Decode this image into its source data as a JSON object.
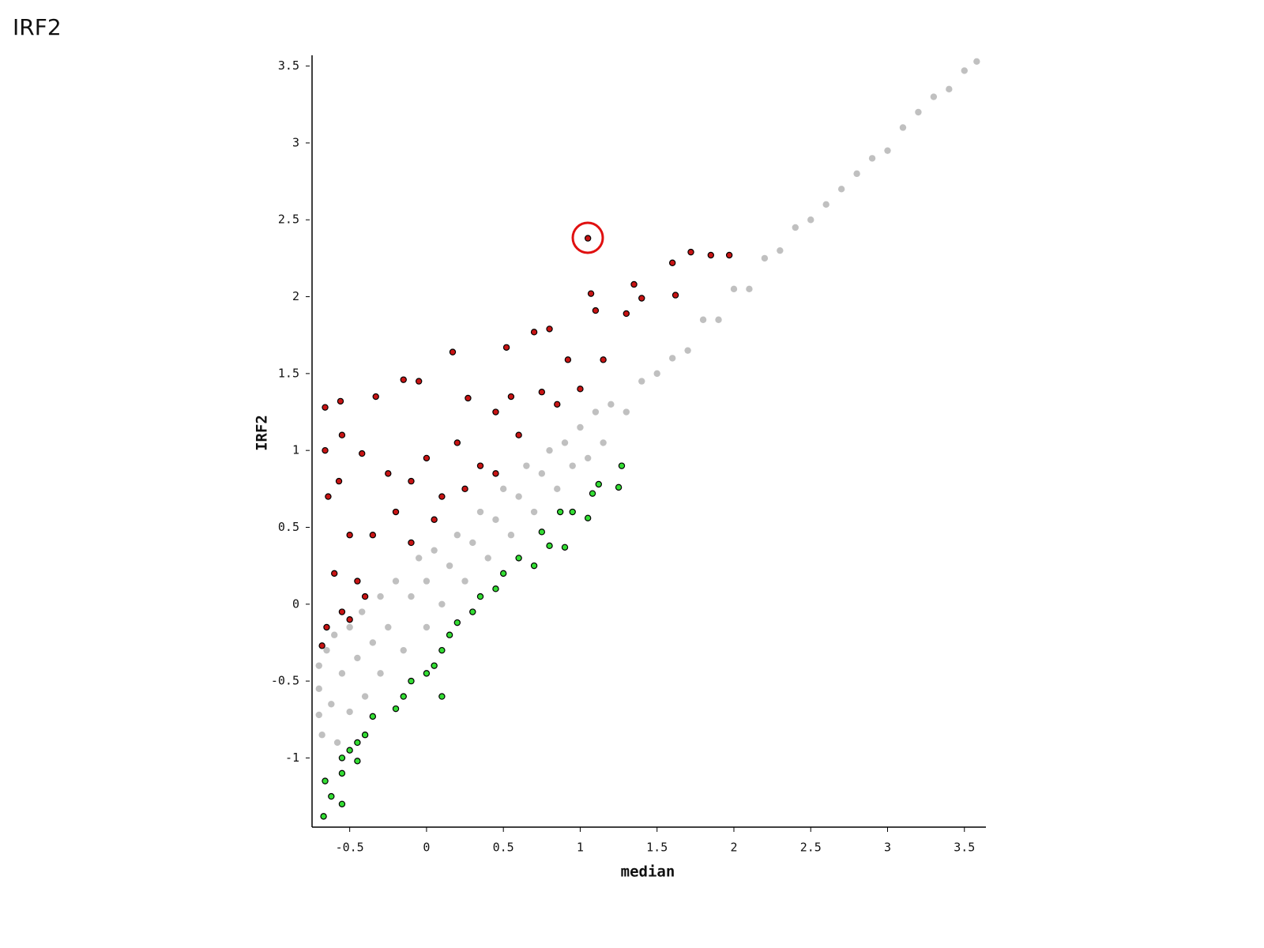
{
  "page_title": "IRF2",
  "chart_data": {
    "type": "scatter",
    "xlabel": "median",
    "ylabel": "IRF2",
    "xlim": [
      -0.745,
      3.64
    ],
    "ylim": [
      -1.45,
      3.57
    ],
    "xticks": [
      -0.5,
      0,
      0.5,
      1,
      1.5,
      2,
      2.5,
      3,
      3.5
    ],
    "yticks": [
      -1,
      -0.5,
      0,
      0.5,
      1,
      1.5,
      2,
      2.5,
      3,
      3.5
    ],
    "series": [
      {
        "color": "#c0c0c0",
        "x": [
          -0.7,
          -0.7,
          -0.7,
          -0.68,
          -0.65,
          -0.62,
          -0.6,
          -0.58,
          -0.55,
          -0.5,
          -0.5,
          -0.45,
          -0.42,
          -0.4,
          -0.35,
          -0.3,
          -0.3,
          -0.25,
          -0.2,
          -0.15,
          -0.1,
          -0.05,
          0,
          0,
          0.05,
          0.1,
          0.15,
          0.2,
          0.25,
          0.3,
          0.35,
          0.4,
          0.45,
          0.5,
          0.55,
          0.6,
          0.65,
          0.7,
          0.75,
          0.8,
          0.85,
          0.9,
          0.95,
          1.0,
          1.05,
          1.1,
          1.15,
          1.2,
          1.3,
          1.4,
          1.5,
          1.6,
          1.7,
          1.8,
          1.9,
          2.0,
          2.1,
          2.2,
          2.3,
          2.4,
          2.5,
          2.6,
          2.7,
          2.8,
          2.9,
          3.0,
          3.1,
          3.2,
          3.3,
          3.4,
          3.5,
          3.58
        ],
        "values": [
          -0.72,
          -0.55,
          -0.4,
          -0.85,
          -0.3,
          -0.65,
          -0.2,
          -0.9,
          -0.45,
          -0.15,
          -0.7,
          -0.35,
          -0.05,
          -0.6,
          -0.25,
          0.05,
          -0.45,
          -0.15,
          0.15,
          -0.3,
          0.05,
          0.3,
          -0.15,
          0.15,
          0.35,
          0.0,
          0.25,
          0.45,
          0.15,
          0.4,
          0.6,
          0.3,
          0.55,
          0.75,
          0.45,
          0.7,
          0.9,
          0.6,
          0.85,
          1.0,
          0.75,
          1.05,
          0.9,
          1.15,
          0.95,
          1.25,
          1.05,
          1.3,
          1.25,
          1.45,
          1.5,
          1.6,
          1.65,
          1.85,
          1.85,
          2.05,
          2.05,
          2.25,
          2.3,
          2.45,
          2.5,
          2.6,
          2.7,
          2.8,
          2.9,
          2.95,
          3.1,
          3.2,
          3.3,
          3.35,
          3.47,
          3.53
        ]
      },
      {
        "color": "#c81414",
        "edgecolor": "#000000",
        "x": [
          1.05,
          1.72,
          1.85,
          1.97,
          1.6,
          1.35,
          1.07,
          1.4,
          1.62,
          1.1,
          1.3,
          0.8,
          0.7,
          0.52,
          0.17,
          -0.15,
          -0.05,
          -0.33,
          -0.56,
          -0.66,
          0.27,
          0.92,
          1.15,
          0.55,
          0.75,
          0.45,
          0.2,
          0.0,
          -0.1,
          -0.25,
          -0.55,
          -0.42,
          -0.66,
          0.35,
          0.1,
          -0.2,
          -0.35,
          -0.5,
          -0.64,
          -0.57,
          0.05,
          -0.1,
          -0.45,
          -0.6,
          -0.55,
          -0.65,
          -0.68,
          -0.5,
          -0.4,
          0.25,
          0.45,
          0.6,
          0.85,
          1.0
        ],
        "values": [
          2.38,
          2.29,
          2.27,
          2.27,
          2.22,
          2.08,
          2.02,
          1.99,
          2.01,
          1.91,
          1.89,
          1.79,
          1.77,
          1.67,
          1.64,
          1.46,
          1.45,
          1.35,
          1.32,
          1.28,
          1.34,
          1.59,
          1.59,
          1.35,
          1.38,
          1.25,
          1.05,
          0.95,
          0.8,
          0.85,
          1.1,
          0.98,
          1.0,
          0.9,
          0.7,
          0.6,
          0.45,
          0.45,
          0.7,
          0.8,
          0.55,
          0.4,
          0.15,
          0.2,
          -0.05,
          -0.15,
          -0.27,
          -0.1,
          0.05,
          0.75,
          0.85,
          1.1,
          1.3,
          1.4
        ]
      },
      {
        "color": "#33dd33",
        "edgecolor": "#000000",
        "x": [
          1.27,
          1.12,
          1.25,
          1.08,
          0.95,
          0.87,
          1.05,
          0.75,
          0.8,
          0.9,
          0.6,
          0.7,
          0.5,
          0.45,
          0.35,
          0.3,
          0.2,
          0.15,
          0.1,
          0.05,
          0.0,
          -0.1,
          -0.15,
          0.1,
          -0.2,
          -0.35,
          -0.4,
          -0.45,
          -0.5,
          -0.55,
          -0.45,
          -0.55,
          -0.66,
          -0.62,
          -0.55,
          -0.67
        ],
        "values": [
          0.9,
          0.78,
          0.76,
          0.72,
          0.6,
          0.6,
          0.56,
          0.47,
          0.38,
          0.37,
          0.3,
          0.25,
          0.2,
          0.1,
          0.05,
          -0.05,
          -0.12,
          -0.2,
          -0.3,
          -0.4,
          -0.45,
          -0.5,
          -0.6,
          -0.6,
          -0.68,
          -0.73,
          -0.85,
          -0.9,
          -0.95,
          -1.0,
          -1.02,
          -1.1,
          -1.15,
          -1.25,
          -1.3,
          -1.38
        ]
      }
    ]
  }
}
